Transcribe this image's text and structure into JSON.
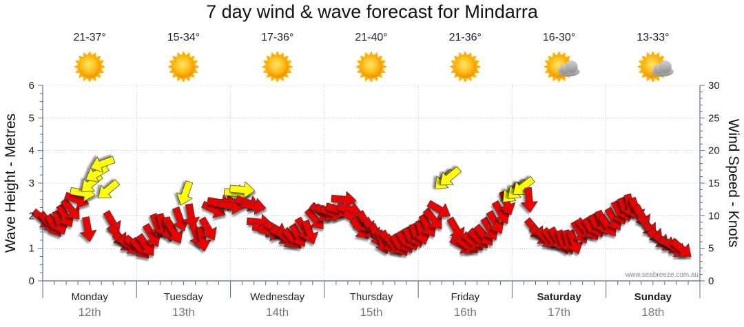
{
  "title": "7 day wind & wave forecast for Mindarra",
  "watermark": "www.seabreeze.com.au",
  "colors": {
    "wind_strong": "#ee0000",
    "wind_light": "#ffff00",
    "wind_outline": "#333333",
    "axis": "#5b6f86",
    "grid": "#999999",
    "sun": "#ffb000",
    "cloud": "#a7a7a7"
  },
  "days": [
    {
      "day": "Monday",
      "date": "12th",
      "temp": "21-37°",
      "icon": "sun-icon",
      "bold": false
    },
    {
      "day": "Tuesday",
      "date": "13th",
      "temp": "15-34°",
      "icon": "sun-icon",
      "bold": false
    },
    {
      "day": "Wednesday",
      "date": "14th",
      "temp": "17-36°",
      "icon": "sun-icon",
      "bold": false
    },
    {
      "day": "Thursday",
      "date": "15th",
      "temp": "21-40°",
      "icon": "sun-icon",
      "bold": false
    },
    {
      "day": "Friday",
      "date": "16th",
      "temp": "21-36°",
      "icon": "sun-icon",
      "bold": false
    },
    {
      "day": "Saturday",
      "date": "17th",
      "temp": "16-30°",
      "icon": "sun-cloud-icon",
      "bold": true
    },
    {
      "day": "Sunday",
      "date": "18th",
      "temp": "13-33°",
      "icon": "sun-cloud-icon",
      "bold": true
    }
  ],
  "chart_data": {
    "type": "scatter",
    "title": "7 day wind & wave forecast for Mindarra",
    "ylabel_left": "Wave Height - Metres",
    "ylabel_right": "Wind Speed - Knots",
    "ylim_left": [
      0,
      6
    ],
    "ylim_right": [
      0,
      30
    ],
    "yticks_left": [
      "0",
      "1",
      "2",
      "3",
      "4",
      "5",
      "6"
    ],
    "yticks_right": [
      "0",
      "5",
      "10",
      "15",
      "20",
      "25",
      "30"
    ],
    "x_unit": "days from Monday 12th 00:00",
    "xlim": [
      0,
      7
    ],
    "grid": true,
    "series": [
      {
        "marker": "wind-arrow",
        "fields": [
          "time_days",
          "wind_knots",
          "direction_deg"
        ],
        "points": [
          [
            0.0,
            9.5,
            130
          ],
          [
            0.06,
            9.0,
            140
          ],
          [
            0.12,
            8.5,
            150
          ],
          [
            0.18,
            9.0,
            160
          ],
          [
            0.24,
            10.0,
            150
          ],
          [
            0.3,
            11.0,
            140
          ],
          [
            0.36,
            12.5,
            110
          ],
          [
            0.42,
            13.5,
            100
          ],
          [
            0.48,
            8.0,
            170
          ],
          [
            0.52,
            15.0,
            230
          ],
          [
            0.58,
            16.5,
            240
          ],
          [
            0.64,
            18.0,
            250
          ],
          [
            0.7,
            14.0,
            230
          ],
          [
            0.74,
            9.0,
            150
          ],
          [
            0.8,
            7.0,
            140
          ],
          [
            0.86,
            6.0,
            130
          ],
          [
            0.92,
            5.5,
            125
          ],
          [
            0.98,
            5.5,
            130
          ],
          [
            1.04,
            5.0,
            140
          ],
          [
            1.1,
            5.5,
            145
          ],
          [
            1.16,
            7.0,
            150
          ],
          [
            1.22,
            8.5,
            160
          ],
          [
            1.28,
            8.5,
            165
          ],
          [
            1.34,
            8.0,
            170
          ],
          [
            1.4,
            7.5,
            150
          ],
          [
            1.46,
            9.5,
            160
          ],
          [
            1.52,
            13.5,
            200
          ],
          [
            1.58,
            10.0,
            170
          ],
          [
            1.64,
            7.0,
            160
          ],
          [
            1.7,
            6.5,
            170
          ],
          [
            1.76,
            8.0,
            150
          ],
          [
            1.82,
            11.0,
            115
          ],
          [
            1.88,
            12.0,
            100
          ],
          [
            1.94,
            12.0,
            90
          ],
          [
            2.0,
            11.5,
            100
          ],
          [
            2.06,
            13.5,
            95
          ],
          [
            2.12,
            14.0,
            95
          ],
          [
            2.18,
            12.0,
            110
          ],
          [
            2.24,
            11.5,
            100
          ],
          [
            2.3,
            9.0,
            95
          ],
          [
            2.36,
            8.0,
            100
          ],
          [
            2.42,
            7.5,
            110
          ],
          [
            2.48,
            8.0,
            120
          ],
          [
            2.54,
            7.0,
            125
          ],
          [
            2.6,
            6.5,
            130
          ],
          [
            2.66,
            6.5,
            140
          ],
          [
            2.72,
            7.0,
            150
          ],
          [
            2.78,
            8.0,
            150
          ],
          [
            2.84,
            7.5,
            160
          ],
          [
            2.9,
            9.5,
            140
          ],
          [
            2.96,
            10.5,
            130
          ],
          [
            3.02,
            10.5,
            120
          ],
          [
            3.08,
            10.5,
            110
          ],
          [
            3.14,
            11.0,
            105
          ],
          [
            3.2,
            12.5,
            95
          ],
          [
            3.26,
            11.0,
            105
          ],
          [
            3.32,
            9.5,
            120
          ],
          [
            3.38,
            8.0,
            140
          ],
          [
            3.44,
            9.0,
            150
          ],
          [
            3.5,
            8.0,
            150
          ],
          [
            3.56,
            7.0,
            155
          ],
          [
            3.62,
            6.0,
            160
          ],
          [
            3.68,
            6.0,
            150
          ],
          [
            3.74,
            5.5,
            140
          ],
          [
            3.8,
            5.5,
            145
          ],
          [
            3.86,
            6.0,
            150
          ],
          [
            3.92,
            6.5,
            155
          ],
          [
            3.98,
            7.0,
            160
          ],
          [
            4.04,
            7.5,
            165
          ],
          [
            4.1,
            8.5,
            150
          ],
          [
            4.16,
            9.5,
            140
          ],
          [
            4.22,
            11.0,
            120
          ],
          [
            4.28,
            15.5,
            225
          ],
          [
            4.34,
            16.0,
            230
          ],
          [
            4.4,
            8.0,
            150
          ],
          [
            4.46,
            5.5,
            120
          ],
          [
            4.52,
            5.5,
            125
          ],
          [
            4.58,
            6.0,
            130
          ],
          [
            4.64,
            6.5,
            135
          ],
          [
            4.7,
            7.0,
            140
          ],
          [
            4.76,
            8.0,
            150
          ],
          [
            4.82,
            9.0,
            150
          ],
          [
            4.88,
            10.5,
            150
          ],
          [
            4.94,
            12.0,
            160
          ],
          [
            5.0,
            13.5,
            225
          ],
          [
            5.06,
            14.0,
            228
          ],
          [
            5.12,
            14.5,
            232
          ],
          [
            5.18,
            12.5,
            175
          ],
          [
            5.24,
            8.0,
            140
          ],
          [
            5.3,
            7.0,
            130
          ],
          [
            5.36,
            6.5,
            135
          ],
          [
            5.42,
            6.5,
            140
          ],
          [
            5.48,
            6.5,
            150
          ],
          [
            5.54,
            6.0,
            160
          ],
          [
            5.6,
            6.0,
            165
          ],
          [
            5.66,
            6.0,
            160
          ],
          [
            5.72,
            7.5,
            150
          ],
          [
            5.78,
            8.0,
            140
          ],
          [
            5.84,
            8.0,
            150
          ],
          [
            5.9,
            8.5,
            155
          ],
          [
            5.96,
            9.0,
            160
          ],
          [
            6.02,
            8.5,
            145
          ],
          [
            6.08,
            9.5,
            150
          ],
          [
            6.14,
            10.5,
            155
          ],
          [
            6.2,
            11.0,
            160
          ],
          [
            6.26,
            11.5,
            165
          ],
          [
            6.32,
            11.0,
            160
          ],
          [
            6.38,
            10.0,
            150
          ],
          [
            6.44,
            8.5,
            140
          ],
          [
            6.5,
            7.5,
            135
          ],
          [
            6.56,
            6.5,
            130
          ],
          [
            6.62,
            6.0,
            125
          ],
          [
            6.68,
            5.5,
            120
          ],
          [
            6.74,
            5.0,
            125
          ],
          [
            6.8,
            5.0,
            130
          ]
        ]
      }
    ]
  }
}
